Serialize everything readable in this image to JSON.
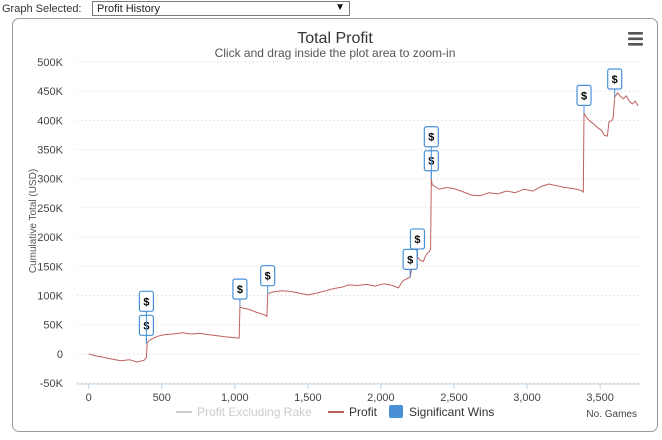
{
  "header": {
    "graph_selected_label": "Graph Selected:",
    "graph_selected_value": "Profit History"
  },
  "chart_data": {
    "type": "line",
    "title": "Total Profit",
    "subtitle": "Click and drag inside the plot area to zoom-in",
    "ylabel": "Cumulative Total (USD)",
    "xlabel": "No. Games",
    "xlim": [
      -80,
      3780
    ],
    "ylim": [
      -50000,
      500000
    ],
    "x_ticks": [
      0,
      500,
      1000,
      1500,
      2000,
      2500,
      3000,
      3500
    ],
    "x_tick_labels": [
      "0",
      "500",
      "1,000",
      "1,500",
      "2,000",
      "2,500",
      "3,000",
      "3,500"
    ],
    "y_ticks": [
      -50000,
      0,
      50000,
      100000,
      150000,
      200000,
      250000,
      300000,
      350000,
      400000,
      450000,
      500000
    ],
    "y_tick_labels": [
      "-50K",
      "0",
      "50K",
      "100K",
      "150K",
      "200K",
      "250K",
      "300K",
      "350K",
      "400K",
      "450K",
      "500K"
    ],
    "grid": true,
    "legend_position": "bottom",
    "legend": [
      {
        "name": "Profit Excluding Rake",
        "visible": false,
        "color": "#cccccc"
      },
      {
        "name": "Profit",
        "visible": true,
        "color": "#c06060"
      },
      {
        "name": "Significant Wins",
        "visible": true,
        "color": "#4a90d9"
      }
    ],
    "series": [
      {
        "name": "Profit",
        "color": "#c06060",
        "points": [
          [
            0,
            0
          ],
          [
            40,
            -3000
          ],
          [
            100,
            -6000
          ],
          [
            160,
            -9000
          ],
          [
            220,
            -12000
          ],
          [
            280,
            -10000
          ],
          [
            330,
            -14000
          ],
          [
            380,
            -11000
          ],
          [
            395,
            -6000
          ],
          [
            400,
            18000
          ],
          [
            410,
            22000
          ],
          [
            430,
            25000
          ],
          [
            470,
            30000
          ],
          [
            520,
            33000
          ],
          [
            580,
            34000
          ],
          [
            640,
            36000
          ],
          [
            700,
            34000
          ],
          [
            760,
            35000
          ],
          [
            820,
            33000
          ],
          [
            880,
            31000
          ],
          [
            940,
            29000
          ],
          [
            990,
            28000
          ],
          [
            1030,
            27000
          ],
          [
            1035,
            80000
          ],
          [
            1060,
            78000
          ],
          [
            1100,
            76000
          ],
          [
            1150,
            71000
          ],
          [
            1200,
            67000
          ],
          [
            1220,
            64000
          ],
          [
            1225,
            103000
          ],
          [
            1260,
            106000
          ],
          [
            1320,
            108000
          ],
          [
            1380,
            107000
          ],
          [
            1440,
            104000
          ],
          [
            1500,
            101000
          ],
          [
            1560,
            104000
          ],
          [
            1620,
            108000
          ],
          [
            1680,
            112000
          ],
          [
            1730,
            114000
          ],
          [
            1780,
            118000
          ],
          [
            1840,
            117000
          ],
          [
            1900,
            119000
          ],
          [
            1960,
            116000
          ],
          [
            2020,
            120000
          ],
          [
            2080,
            117000
          ],
          [
            2120,
            113000
          ],
          [
            2150,
            125000
          ],
          [
            2180,
            129000
          ],
          [
            2200,
            131000
          ],
          [
            2210,
            145000
          ],
          [
            2230,
            150000
          ],
          [
            2250,
            166000
          ],
          [
            2270,
            160000
          ],
          [
            2290,
            158000
          ],
          [
            2310,
            170000
          ],
          [
            2330,
            175000
          ],
          [
            2340,
            179000
          ],
          [
            2345,
            300000
          ],
          [
            2350,
            290000
          ],
          [
            2380,
            285000
          ],
          [
            2400,
            282000
          ],
          [
            2450,
            285000
          ],
          [
            2500,
            283000
          ],
          [
            2560,
            278000
          ],
          [
            2620,
            272000
          ],
          [
            2680,
            271000
          ],
          [
            2740,
            276000
          ],
          [
            2800,
            274000
          ],
          [
            2860,
            279000
          ],
          [
            2920,
            276000
          ],
          [
            2980,
            282000
          ],
          [
            3040,
            279000
          ],
          [
            3090,
            286000
          ],
          [
            3150,
            291000
          ],
          [
            3200,
            288000
          ],
          [
            3260,
            285000
          ],
          [
            3320,
            283000
          ],
          [
            3370,
            280000
          ],
          [
            3385,
            277000
          ],
          [
            3390,
            412000
          ],
          [
            3400,
            408000
          ],
          [
            3420,
            401000
          ],
          [
            3450,
            395000
          ],
          [
            3480,
            388000
          ],
          [
            3510,
            383000
          ],
          [
            3530,
            374000
          ],
          [
            3550,
            373000
          ],
          [
            3560,
            397000
          ],
          [
            3580,
            400000
          ],
          [
            3590,
            405000
          ],
          [
            3600,
            440000
          ],
          [
            3620,
            447000
          ],
          [
            3640,
            441000
          ],
          [
            3660,
            437000
          ],
          [
            3680,
            442000
          ],
          [
            3700,
            433000
          ],
          [
            3720,
            428000
          ],
          [
            3740,
            433000
          ],
          [
            3760,
            425000
          ]
        ]
      }
    ],
    "flags": [
      {
        "x": 395,
        "y": 18000,
        "label": "$"
      },
      {
        "x": 395,
        "y": 18000,
        "label": "$"
      },
      {
        "x": 1035,
        "y": 80000,
        "label": "$"
      },
      {
        "x": 1225,
        "y": 103000,
        "label": "$"
      },
      {
        "x": 2200,
        "y": 131000,
        "label": "$"
      },
      {
        "x": 2250,
        "y": 166000,
        "label": "$"
      },
      {
        "x": 2345,
        "y": 300000,
        "label": "$"
      },
      {
        "x": 2345,
        "y": 300000,
        "label": "$"
      },
      {
        "x": 3390,
        "y": 412000,
        "label": "$"
      },
      {
        "x": 3600,
        "y": 440000,
        "label": "$"
      }
    ]
  }
}
